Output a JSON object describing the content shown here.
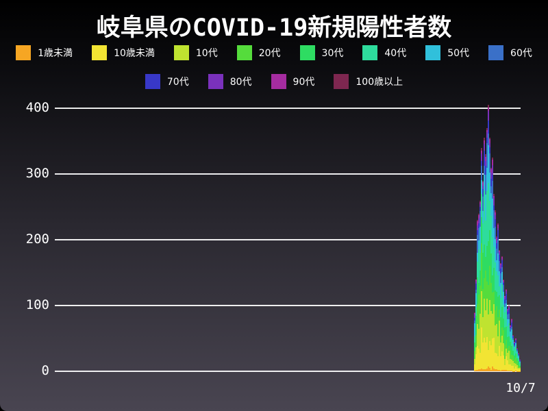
{
  "title": "岐阜県のCOVID-19新規陽性者数",
  "legend": {
    "rows": [
      [
        0,
        1,
        2,
        3,
        4,
        5,
        6,
        7
      ],
      [
        8,
        9,
        10,
        11
      ]
    ]
  },
  "chart_data": {
    "type": "bar",
    "stacked": true,
    "title": "岐阜県のCOVID-19新規陽性者数",
    "xlabel": "",
    "ylabel": "",
    "ylim": [
      0,
      400
    ],
    "yticks": [
      0,
      100,
      200,
      300,
      400
    ],
    "xtick_labels": [
      "10/7"
    ],
    "grid": true,
    "legend_position": "top",
    "background_top": "#000000",
    "background_bottom": "#494551",
    "gridline_color": "#FFFFFF",
    "text_color": "#FFFFFF",
    "series": [
      {
        "label": "1歳未満",
        "color": "#F6A623"
      },
      {
        "label": "10歳未満",
        "color": "#F2E433"
      },
      {
        "label": "10代",
        "color": "#BFE330"
      },
      {
        "label": "20代",
        "color": "#55DC3C"
      },
      {
        "label": "30代",
        "color": "#2EDC62"
      },
      {
        "label": "40代",
        "color": "#2EDC9D"
      },
      {
        "label": "50代",
        "color": "#30C0DB"
      },
      {
        "label": "60代",
        "color": "#3A70C8"
      },
      {
        "label": "70代",
        "color": "#3838C8"
      },
      {
        "label": "80代",
        "color": "#7A31BC"
      },
      {
        "label": "90代",
        "color": "#A52CA0"
      },
      {
        "label": "100歳以上",
        "color": "#7E2750"
      }
    ],
    "age_fractions": [
      0.012,
      0.128,
      0.148,
      0.142,
      0.148,
      0.15,
      0.108,
      0.07,
      0.042,
      0.028,
      0.016,
      0.008
    ],
    "bar_totals": [
      90,
      140,
      230,
      240,
      260,
      340,
      290,
      355,
      330,
      370,
      405,
      355,
      310,
      325,
      270,
      245,
      205,
      225,
      185,
      165,
      175,
      140,
      115,
      125,
      95,
      100,
      70,
      80,
      55,
      45,
      50,
      35,
      28,
      18
    ]
  }
}
